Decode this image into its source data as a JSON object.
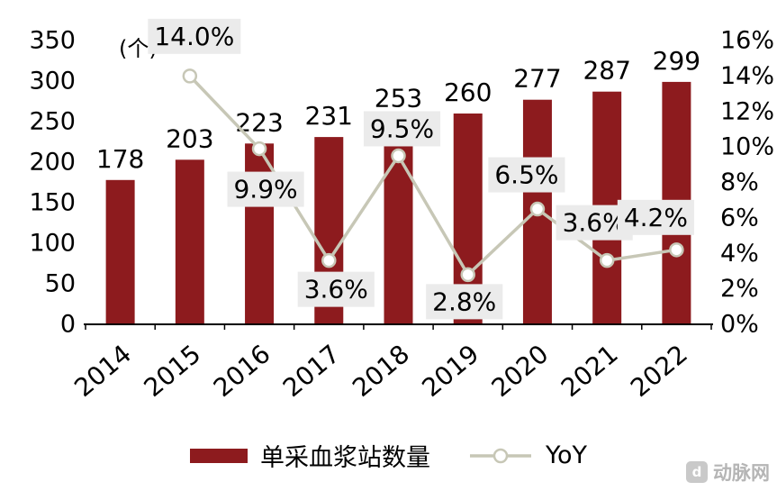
{
  "chart_data": {
    "type": "bar",
    "categories": [
      "2014",
      "2015",
      "2016",
      "2017",
      "2018",
      "2019",
      "2020",
      "2021",
      "2022"
    ],
    "series": [
      {
        "name": "单采血浆站数量",
        "type": "bar",
        "axis": "left",
        "values": [
          178,
          203,
          223,
          231,
          253,
          260,
          277,
          287,
          299
        ],
        "color": "#8d1b1e"
      },
      {
        "name": "YoY",
        "type": "line",
        "axis": "right",
        "values": [
          null,
          14.0,
          9.9,
          3.6,
          9.5,
          2.8,
          6.5,
          3.6,
          4.2
        ],
        "labels": [
          "",
          "14.0%",
          "9.9%",
          "3.6%",
          "9.5%",
          "2.8%",
          "6.5%",
          "3.6%",
          "4.2%"
        ],
        "color": "#c7c7b6",
        "marker_fill": "#ffffff",
        "label_bg": "#ebebeb"
      }
    ],
    "left_axis": {
      "unit": "(个)",
      "min": 0,
      "max": 350,
      "step": 50,
      "ticks": [
        "0",
        "50",
        "100",
        "150",
        "200",
        "250",
        "300",
        "350"
      ]
    },
    "right_axis": {
      "min": 0,
      "max": 16,
      "step": 2,
      "ticks": [
        "0%",
        "2%",
        "4%",
        "6%",
        "8%",
        "10%",
        "12%",
        "14%",
        "16%"
      ]
    },
    "label_offsets": [
      null,
      [
        5,
        -44
      ],
      [
        7,
        45
      ],
      [
        8,
        32
      ],
      [
        4,
        -30
      ],
      [
        -4,
        30
      ],
      [
        -12,
        -38
      ],
      [
        -14,
        -42
      ],
      [
        -23,
        -36
      ]
    ],
    "grid": "off",
    "legend_position": "bottom",
    "title": "",
    "watermark": "动脉网",
    "watermark_icon": "d"
  }
}
